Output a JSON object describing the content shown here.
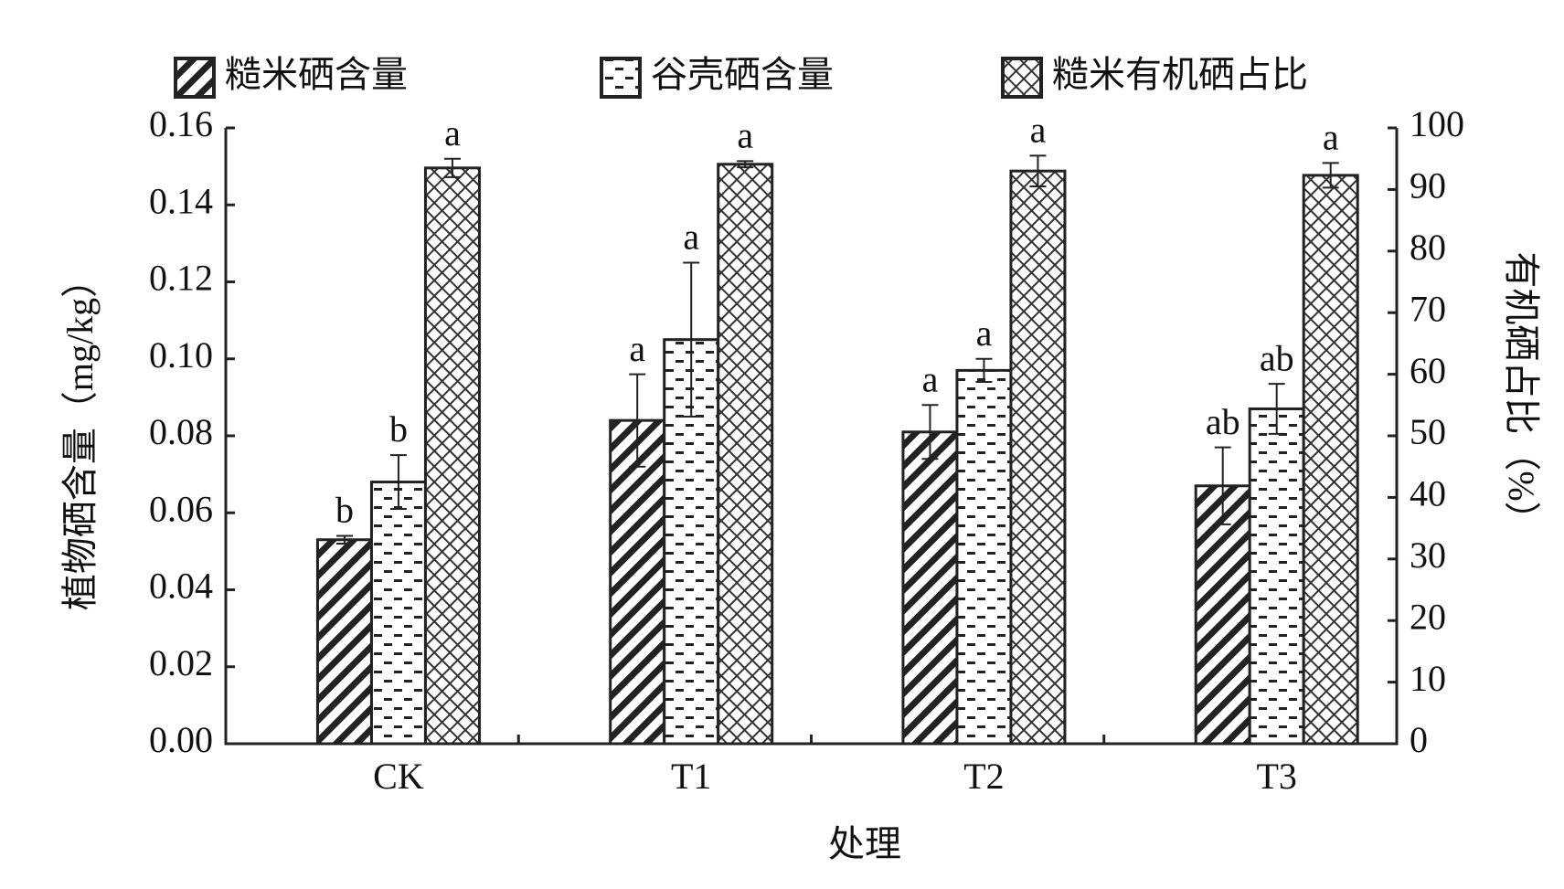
{
  "chart_data": {
    "type": "bar",
    "x_label": "处理",
    "y_label": "植物硒含量（mg/kg）",
    "y2_label": "有机硒占比（%）",
    "categories": [
      "CK",
      "T1",
      "T2",
      "T3"
    ],
    "ylim": [
      0,
      0.16
    ],
    "yticks": [
      {
        "value": 0,
        "label": "0.00"
      },
      {
        "value": 0.02,
        "label": "0.02"
      },
      {
        "value": 0.04,
        "label": "0.04"
      },
      {
        "value": 0.06,
        "label": "0.06"
      },
      {
        "value": 0.08,
        "label": "0.08"
      },
      {
        "value": 0.1,
        "label": "0.10"
      },
      {
        "value": 0.12,
        "label": "0.12"
      },
      {
        "value": 0.14,
        "label": "0.14"
      },
      {
        "value": 0.16,
        "label": "0.16"
      }
    ],
    "y2lim": [
      0,
      100
    ],
    "y2ticks": [
      0,
      10,
      20,
      30,
      40,
      50,
      60,
      70,
      80,
      90,
      100
    ],
    "series": [
      {
        "name": "糙米硒含量",
        "color": "#222222",
        "pattern": "diagonal",
        "values": [
          0.053,
          0.084,
          0.081,
          0.067
        ],
        "errors": [
          0.001,
          0.012,
          0.007,
          0.01
        ],
        "labels": [
          "b",
          "a",
          "a",
          "ab"
        ]
      },
      {
        "name": "谷壳硒含量",
        "color": "#222222",
        "pattern": "dashes",
        "values": [
          0.068,
          0.105,
          0.097,
          0.087
        ],
        "errors": [
          0.007,
          0.02,
          0.003,
          0.0065
        ],
        "labels": [
          "b",
          "a",
          "a",
          "ab"
        ]
      },
      {
        "name": "糙米有机硒占比",
        "color": "#222222",
        "pattern": "crosshatch",
        "axis": "y2",
        "values": [
          93.5,
          94.1,
          93.0,
          92.3
        ],
        "errors": [
          1.5,
          0.5,
          2.5,
          2.0
        ],
        "labels": [
          "a",
          "a",
          "a",
          "a"
        ]
      }
    ]
  }
}
